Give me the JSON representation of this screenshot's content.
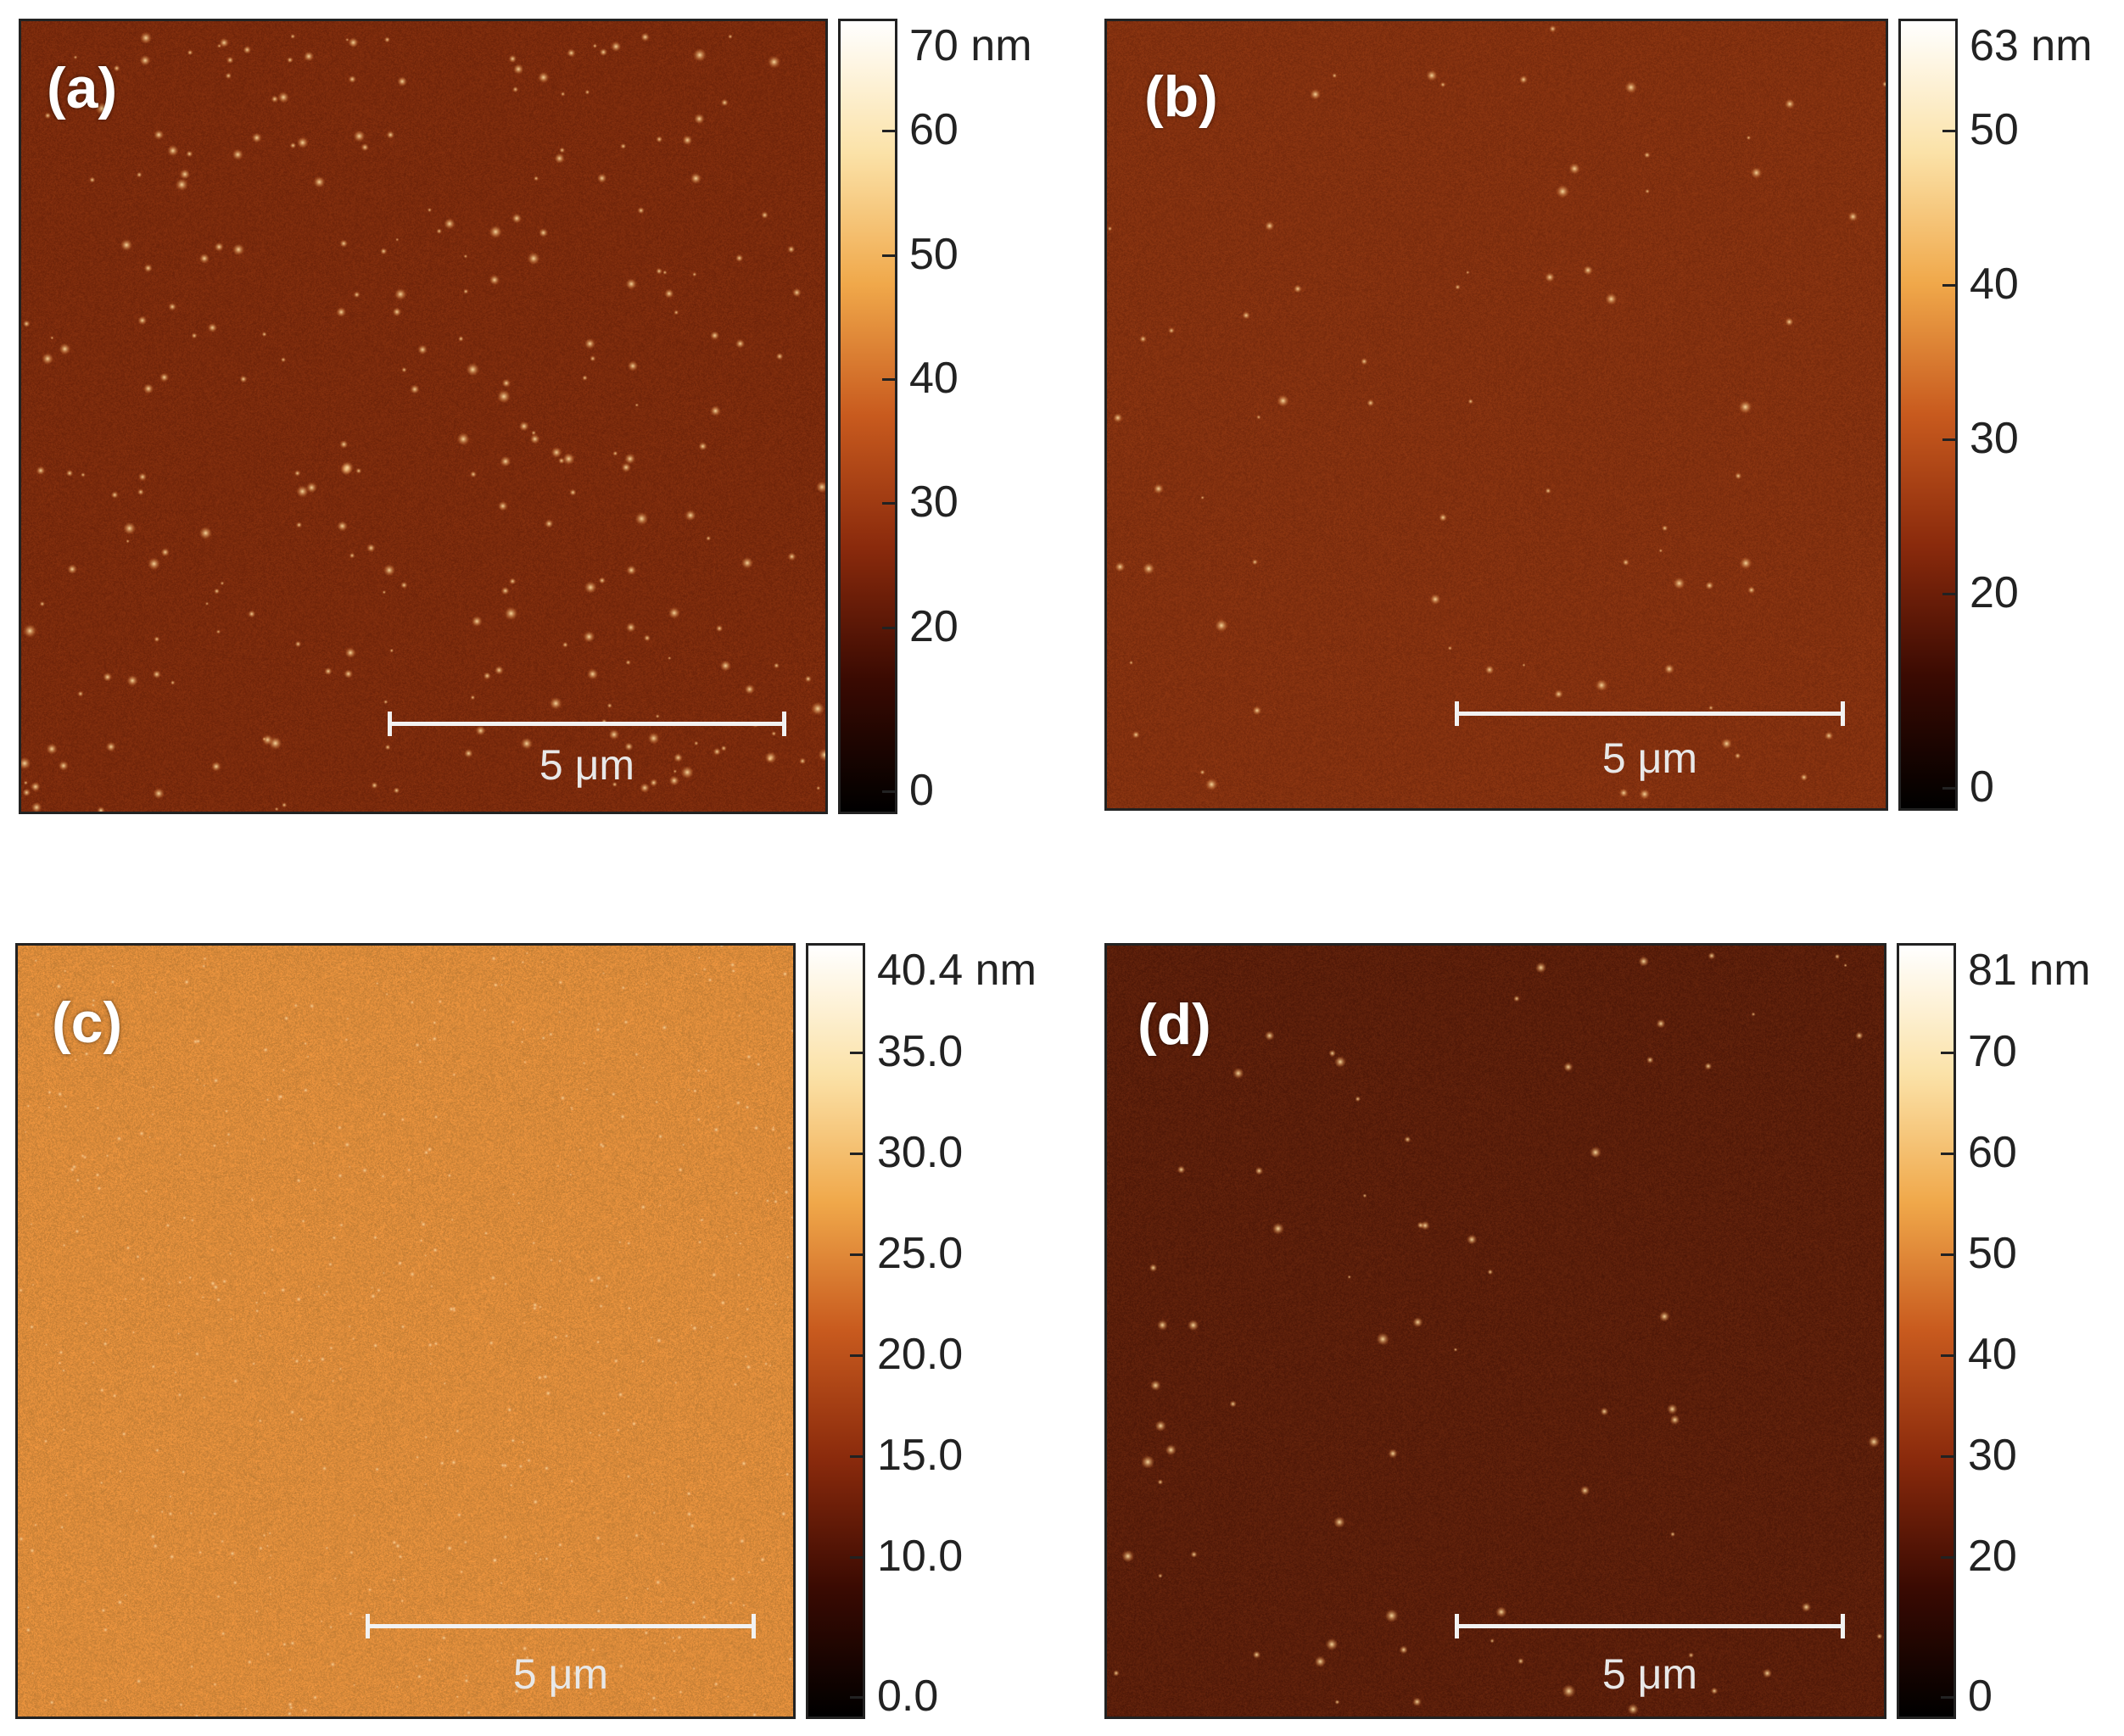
{
  "panels": [
    {
      "label": "(a)",
      "scale_bar": "5 μm",
      "colorbar": {
        "max_label": "70 nm",
        "ticks": [
          "60",
          "50",
          "40",
          "30",
          "20",
          "0"
        ]
      },
      "base_color": "#7a2a0c",
      "noise": "speckled"
    },
    {
      "label": "(b)",
      "scale_bar": "5 μm",
      "colorbar": {
        "max_label": "63 nm",
        "ticks": [
          "50",
          "40",
          "30",
          "20",
          "0"
        ]
      },
      "base_color": "#82300f",
      "noise": "fine"
    },
    {
      "label": "(c)",
      "scale_bar": "5 μm",
      "colorbar": {
        "max_label": "40.4 nm",
        "ticks": [
          "35.0",
          "30.0",
          "25.0",
          "20.0",
          "15.0",
          "10.0",
          "0.0"
        ]
      },
      "base_color": "#d98a3a",
      "noise": "grainy"
    },
    {
      "label": "(d)",
      "scale_bar": "5 μm",
      "colorbar": {
        "max_label": "81 nm",
        "ticks": [
          "70",
          "60",
          "50",
          "40",
          "30",
          "20",
          "0"
        ]
      },
      "base_color": "#5a1e0a",
      "noise": "fine"
    }
  ],
  "colormap": [
    "#000000",
    "#3a0a02",
    "#8a2a0c",
    "#c85a1e",
    "#f0a84a",
    "#fbe2a8",
    "#ffffff"
  ]
}
